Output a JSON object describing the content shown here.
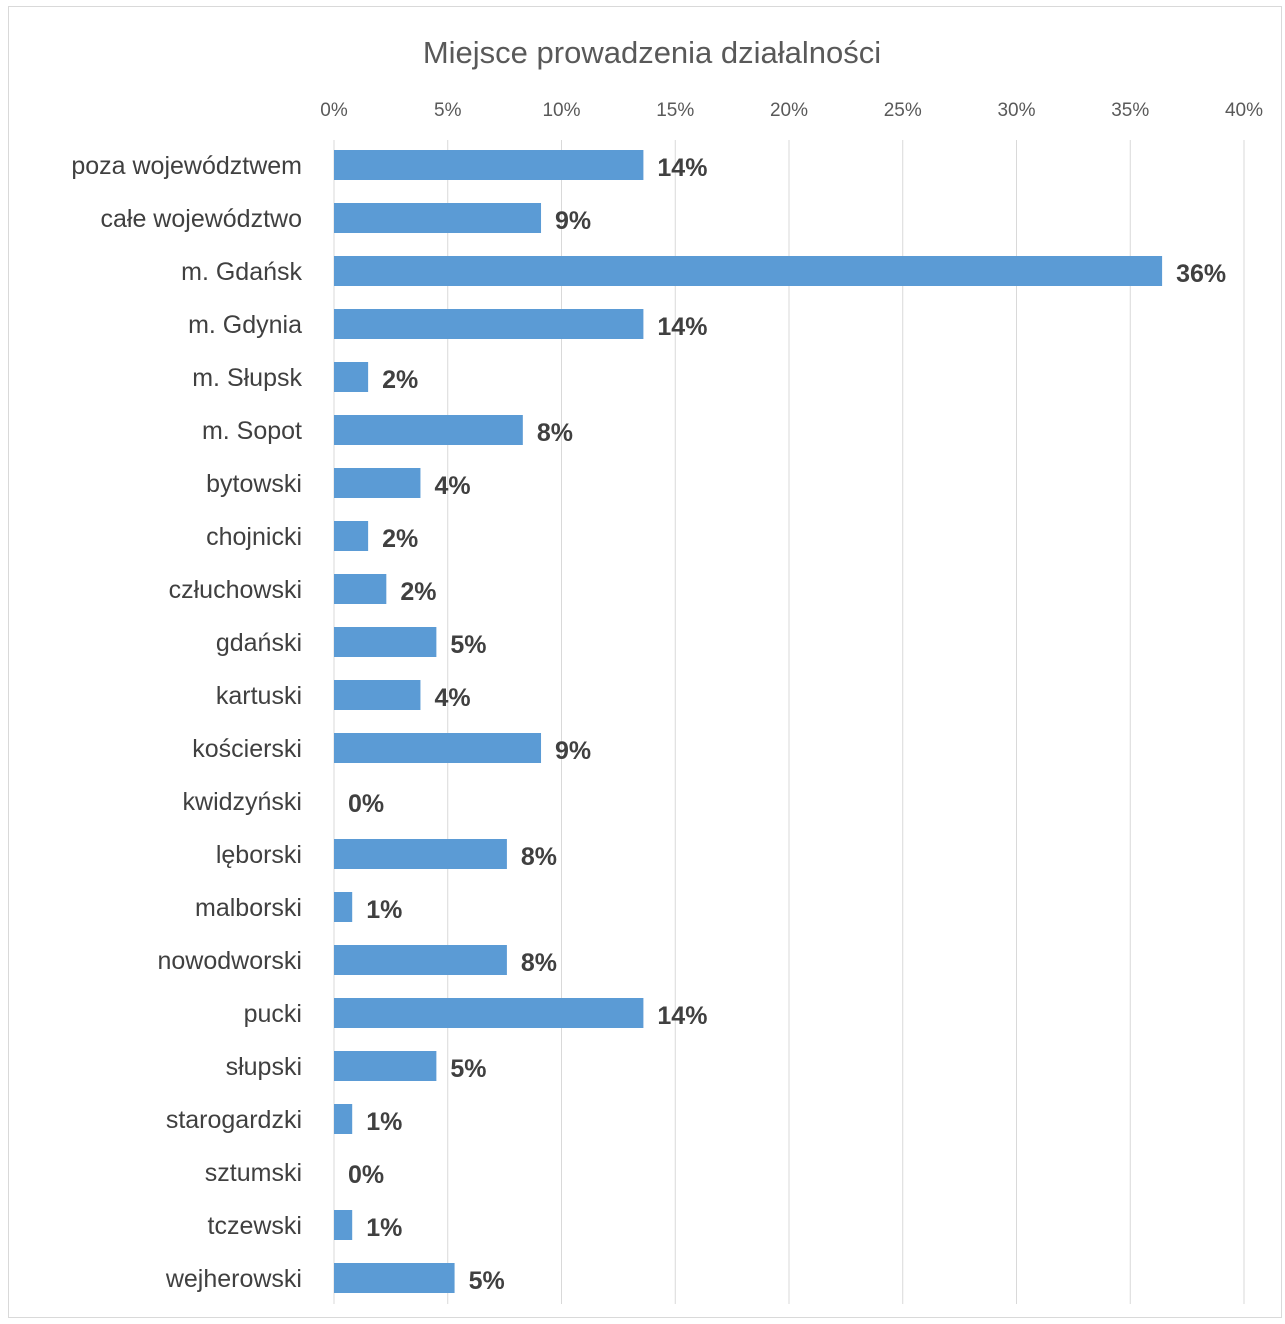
{
  "chart_data": {
    "type": "bar",
    "orientation": "horizontal",
    "title": "Miejsce prowadzenia działalności",
    "xlabel": "",
    "ylabel": "",
    "xlim": [
      0,
      40
    ],
    "x_ticks": [
      "0%",
      "5%",
      "10%",
      "15%",
      "20%",
      "25%",
      "30%",
      "35%",
      "40%"
    ],
    "x_axis_position": "top",
    "grid": true,
    "legend": "none",
    "bar_color": "#5b9bd5",
    "categories": [
      "poza województwem",
      "całe województwo",
      "m. Gdańsk",
      "m. Gdynia",
      "m. Słupsk",
      "m. Sopot",
      "bytowski",
      "chojnicki",
      "człuchowski",
      "gdański",
      "kartuski",
      "kościerski",
      "kwidzyński",
      "lęborski",
      "malborski",
      "nowodworski",
      "pucki",
      "słupski",
      "starogardzki",
      "sztumski",
      "tczewski",
      "wejherowski"
    ],
    "values": [
      13.6,
      9.1,
      36.4,
      13.6,
      1.5,
      8.3,
      3.8,
      1.5,
      2.3,
      4.5,
      3.8,
      9.1,
      0,
      7.6,
      0.8,
      7.6,
      13.6,
      4.5,
      0.8,
      0,
      0.8,
      5.3
    ],
    "data_labels": [
      "14%",
      "9%",
      "36%",
      "14%",
      "2%",
      "8%",
      "4%",
      "2%",
      "2%",
      "5%",
      "4%",
      "9%",
      "0%",
      "8%",
      "1%",
      "8%",
      "14%",
      "5%",
      "1%",
      "0%",
      "1%",
      "5%"
    ]
  }
}
